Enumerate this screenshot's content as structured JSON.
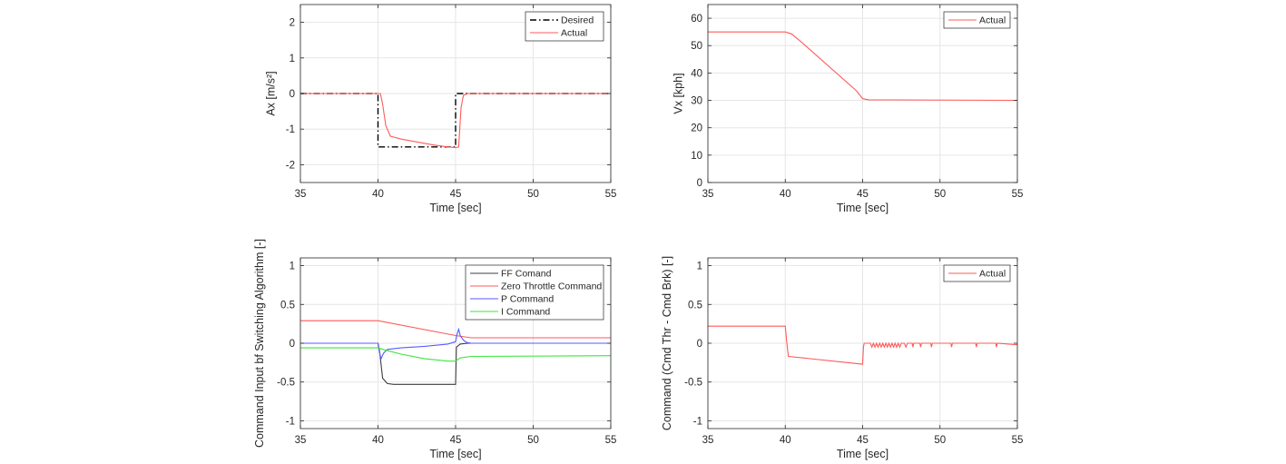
{
  "chart_data": [
    {
      "type": "line",
      "xlabel": "Time [sec]",
      "ylabel": "Ax [m/s²]",
      "xlim": [
        35,
        55
      ],
      "ylim": [
        -2.5,
        2.5
      ],
      "xticks": [
        "35",
        "40",
        "45",
        "50",
        "55"
      ],
      "yticks": [
        "-2",
        "-1",
        "0",
        "1",
        "2"
      ],
      "grid": true,
      "legend": "top-right",
      "series": [
        {
          "name": "Desired",
          "color": "#000000",
          "dash": "dashdot",
          "x": [
            35,
            40,
            40,
            45,
            45,
            55
          ],
          "y": [
            0,
            0,
            -1.5,
            -1.5,
            0,
            0
          ]
        },
        {
          "name": "Actual",
          "color": "#ff5a5a",
          "dash": "solid",
          "x": [
            35,
            40.15,
            40.3,
            40.5,
            40.8,
            41.5,
            42.5,
            43.5,
            44.5,
            45.0,
            45.2,
            45.35,
            45.5,
            45.8,
            46.5,
            55
          ],
          "y": [
            0,
            0,
            -0.3,
            -0.9,
            -1.2,
            -1.28,
            -1.36,
            -1.44,
            -1.5,
            -1.52,
            -1.5,
            -0.4,
            -0.05,
            0,
            0,
            0
          ]
        }
      ]
    },
    {
      "type": "line",
      "xlabel": "Time [sec]",
      "ylabel": "Vx [kph]",
      "xlim": [
        35,
        55
      ],
      "ylim": [
        0,
        65
      ],
      "xticks": [
        "35",
        "40",
        "45",
        "50",
        "55"
      ],
      "yticks": [
        "0",
        "10",
        "20",
        "30",
        "40",
        "50",
        "60"
      ],
      "grid": true,
      "legend": "top-right",
      "series": [
        {
          "name": "Actual",
          "color": "#ff5a5a",
          "dash": "solid",
          "x": [
            35,
            40,
            40.4,
            41,
            44.6,
            45.0,
            45.4,
            55
          ],
          "y": [
            55,
            55,
            54.3,
            51.5,
            33.5,
            30.6,
            30.2,
            30
          ]
        }
      ]
    },
    {
      "type": "line",
      "xlabel": "Time [sec]",
      "ylabel": "Command Input bf Switching Algorithm [-]",
      "xlim": [
        35,
        55
      ],
      "ylim": [
        -1.1,
        1.1
      ],
      "xticks": [
        "35",
        "40",
        "45",
        "50",
        "55"
      ],
      "yticks": [
        "-1",
        "-0.5",
        "0",
        "0.5",
        "1"
      ],
      "grid": true,
      "legend": "top-right",
      "series": [
        {
          "name": "FF Comand",
          "color": "#3c3c3c",
          "dash": "solid",
          "x": [
            35,
            40,
            40.1,
            40.3,
            40.6,
            41,
            45,
            45.05,
            45.3,
            45.8,
            55
          ],
          "y": [
            0,
            0,
            -0.1,
            -0.45,
            -0.52,
            -0.53,
            -0.53,
            -0.05,
            -0.01,
            0,
            0
          ]
        },
        {
          "name": "Zero Throttle Command",
          "color": "#ff5a5a",
          "dash": "solid",
          "x": [
            35,
            40,
            45,
            46,
            55
          ],
          "y": [
            0.29,
            0.29,
            0.1,
            0.07,
            0.07
          ]
        },
        {
          "name": "P Command",
          "color": "#5a5aff",
          "dash": "solid",
          "x": [
            35,
            40,
            40.1,
            40.2,
            40.35,
            40.6,
            41.5,
            43,
            44.5,
            45.0,
            45.1,
            45.2,
            45.3,
            45.5,
            45.7,
            46,
            55
          ],
          "y": [
            0,
            0,
            -0.12,
            -0.2,
            -0.13,
            -0.08,
            -0.06,
            -0.04,
            -0.01,
            0.02,
            0.12,
            0.18,
            0.1,
            0.04,
            0.01,
            0,
            0
          ]
        },
        {
          "name": "I Command",
          "color": "#3ce63c",
          "dash": "solid",
          "x": [
            35,
            40,
            40.5,
            41.5,
            43,
            44.5,
            45,
            45.3,
            46,
            55
          ],
          "y": [
            -0.06,
            -0.06,
            -0.09,
            -0.14,
            -0.2,
            -0.23,
            -0.23,
            -0.19,
            -0.17,
            -0.16
          ]
        }
      ]
    },
    {
      "type": "line",
      "xlabel": "Time [sec]",
      "ylabel": "Command (Cmd Thr - Cmd Brk) [-]",
      "xlim": [
        35,
        55
      ],
      "ylim": [
        -1.1,
        1.1
      ],
      "xticks": [
        "35",
        "40",
        "45",
        "50",
        "55"
      ],
      "yticks": [
        "-1",
        "-0.5",
        "0",
        "0.5",
        "1"
      ],
      "grid": true,
      "legend": "top-right",
      "series": [
        {
          "name": "Actual",
          "color": "#ff5a5a",
          "dash": "solid",
          "x": [
            35,
            40,
            40.1,
            40.2,
            45,
            45.05,
            45.1,
            45.3,
            45.5,
            45.6,
            45.7,
            45.8,
            45.9,
            46.0,
            46.1,
            46.2,
            46.3,
            46.4,
            46.5,
            46.6,
            46.7,
            46.8,
            46.9,
            47.0,
            47.1,
            47.2,
            47.3,
            47.4,
            47.5,
            47.7,
            47.8,
            47.9,
            48.2,
            48.25,
            48.3,
            48.7,
            48.75,
            48.8,
            49.4,
            49.45,
            49.5,
            50.7,
            50.75,
            50.8,
            52.3,
            52.35,
            52.4,
            53.6,
            53.65,
            53.7,
            55
          ],
          "y": [
            0.22,
            0.22,
            0.0,
            -0.17,
            -0.27,
            -0.05,
            0,
            0,
            0,
            -0.05,
            0,
            -0.05,
            0,
            -0.05,
            0,
            -0.05,
            0,
            -0.05,
            0,
            -0.05,
            0,
            -0.05,
            0,
            -0.05,
            0,
            -0.05,
            0,
            -0.05,
            0,
            0,
            -0.05,
            0,
            0,
            -0.05,
            0,
            0,
            -0.05,
            0,
            0,
            -0.05,
            0,
            0,
            -0.05,
            0,
            0,
            -0.05,
            0,
            0,
            -0.05,
            0,
            -0.02
          ]
        }
      ]
    }
  ]
}
